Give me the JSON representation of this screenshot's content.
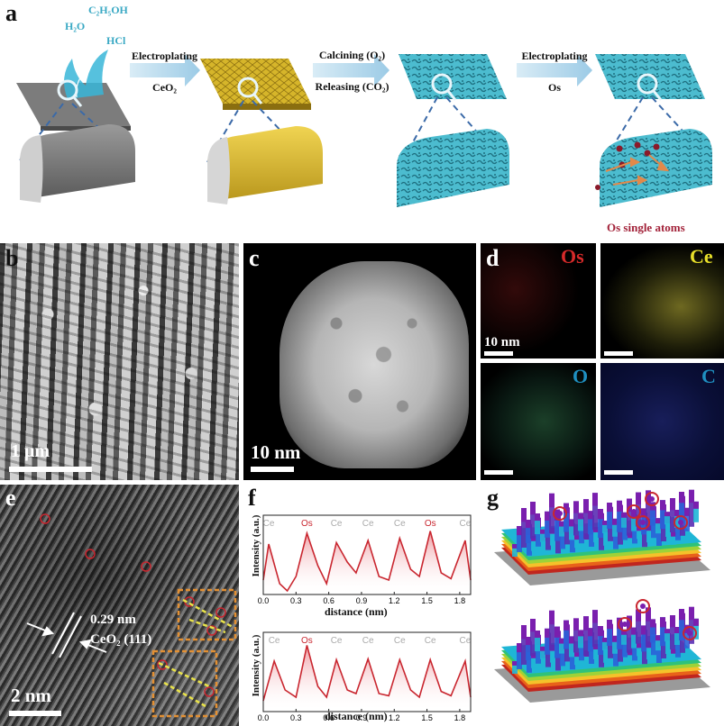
{
  "panel_labels": {
    "a": "a",
    "b": "b",
    "c": "c",
    "d": "d",
    "e": "e",
    "f": "f",
    "g": "g"
  },
  "panel_a": {
    "chemicals": [
      "C₂H₅OH",
      "H₂O",
      "HCl"
    ],
    "steps": [
      {
        "line1": "Electroplating",
        "line2": "CeO₂"
      },
      {
        "line1": "Calcining (O₂)",
        "line2": "Releasing (CO₂)"
      },
      {
        "line1": "Electroplating",
        "line2": "Os"
      }
    ],
    "single_atoms_label": "Os single atoms",
    "colors": {
      "grey": "#7c7c7c",
      "gold": "#d6b52a",
      "cyan": "#49b9cc",
      "os": "#8b1a2a",
      "arrow_fill": "#b8d8ea"
    }
  },
  "panel_b": {
    "scalebar": "1 μm"
  },
  "panel_c": {
    "scalebar": "10 nm"
  },
  "panel_d": {
    "maps": [
      {
        "element": "Os",
        "color": "#d62a2a"
      },
      {
        "element": "Ce",
        "color": "#e8e02a"
      },
      {
        "element": "O",
        "color": "#1f8fc0"
      },
      {
        "element": "C",
        "color": "#1f8fc0"
      }
    ],
    "scalebar": "10 nm"
  },
  "panel_e": {
    "d_spacing": "0.29 nm",
    "plane": "CeO₂ (111)",
    "scalebar": "2 nm"
  },
  "panel_f": {
    "ylabel": "Intensity (a.u.)",
    "xlabel": "distance (nm)",
    "xticks": [
      "0.0",
      "0.3",
      "0.6",
      "0.9",
      "1.2",
      "1.5",
      "1.8"
    ]
  },
  "chart_data": [
    {
      "type": "line",
      "ylabel": "Intensity (a.u.)",
      "xlabel": "distance (nm)",
      "xlim": [
        0,
        1.9
      ],
      "peak_labels": [
        {
          "x": 0.05,
          "label": "Ce"
        },
        {
          "x": 0.4,
          "label": "Os"
        },
        {
          "x": 0.67,
          "label": "Ce"
        },
        {
          "x": 0.96,
          "label": "Ce"
        },
        {
          "x": 1.25,
          "label": "Ce"
        },
        {
          "x": 1.53,
          "label": "Os"
        },
        {
          "x": 1.85,
          "label": "Ce"
        }
      ],
      "x": [
        0.0,
        0.05,
        0.15,
        0.22,
        0.3,
        0.4,
        0.5,
        0.58,
        0.67,
        0.77,
        0.85,
        0.96,
        1.06,
        1.15,
        1.25,
        1.35,
        1.43,
        1.53,
        1.63,
        1.72,
        1.85,
        1.9
      ],
      "y": [
        0.2,
        0.7,
        0.15,
        0.05,
        0.25,
        0.85,
        0.4,
        0.15,
        0.72,
        0.45,
        0.3,
        0.75,
        0.25,
        0.2,
        0.78,
        0.35,
        0.25,
        0.88,
        0.3,
        0.22,
        0.75,
        0.2
      ]
    },
    {
      "type": "line",
      "ylabel": "Intensity (a.u.)",
      "xlabel": "distance (nm)",
      "xlim": [
        0,
        1.9
      ],
      "peak_labels": [
        {
          "x": 0.1,
          "label": "Ce"
        },
        {
          "x": 0.4,
          "label": "Os"
        },
        {
          "x": 0.67,
          "label": "Ce"
        },
        {
          "x": 0.96,
          "label": "Ce"
        },
        {
          "x": 1.25,
          "label": "Ce"
        },
        {
          "x": 1.53,
          "label": "Ce"
        },
        {
          "x": 1.85,
          "label": "Ce"
        }
      ],
      "x": [
        0.0,
        0.1,
        0.2,
        0.3,
        0.4,
        0.5,
        0.58,
        0.67,
        0.77,
        0.85,
        0.96,
        1.06,
        1.15,
        1.25,
        1.35,
        1.43,
        1.53,
        1.63,
        1.72,
        1.85,
        1.9
      ],
      "y": [
        0.15,
        0.7,
        0.3,
        0.2,
        0.92,
        0.35,
        0.2,
        0.72,
        0.3,
        0.25,
        0.73,
        0.25,
        0.22,
        0.72,
        0.3,
        0.2,
        0.72,
        0.28,
        0.22,
        0.7,
        0.2
      ]
    }
  ]
}
